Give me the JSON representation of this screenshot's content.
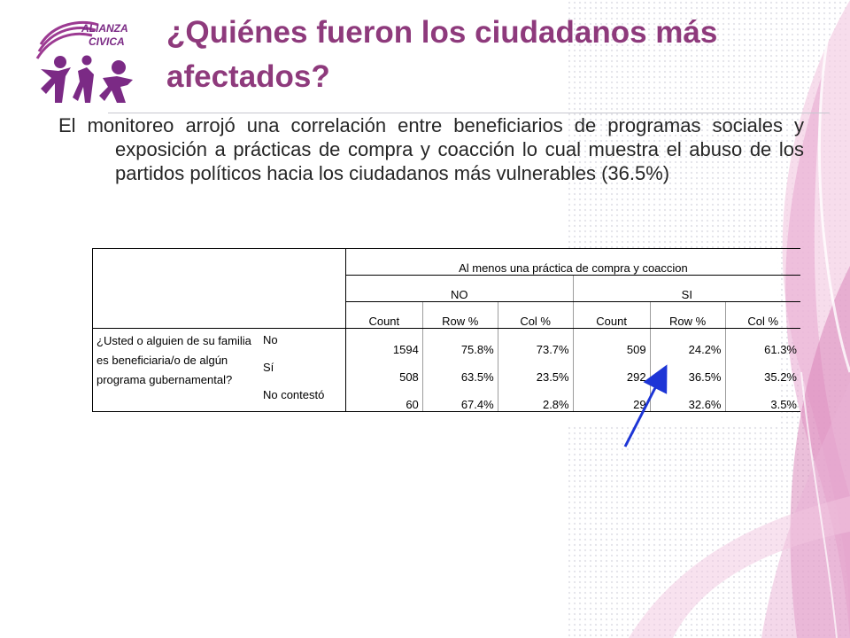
{
  "brand": {
    "logo_line1": "ALIANZA",
    "logo_line2": "CIVICA"
  },
  "title": "¿Quiénes fueron los ciudadanos más afectados?",
  "body": {
    "paragraph": "El monitoreo arrojó una correlación entre beneficiarios de programas sociales y exposición a prácticas de compra y coacción lo cual muestra el abuso de los partidos políticos hacia los ciudadanos más vulnerables (36.5%)"
  },
  "table": {
    "header_top": "Al menos una práctica de compra y coaccion",
    "groups": [
      "NO",
      "SI"
    ],
    "columns": [
      "Count",
      "Row %",
      "Col %",
      "Count",
      "Row %",
      "Col %"
    ],
    "row_question": "¿Usted o alguien de su familia es beneficiaria/o de algún programa gubernamental?",
    "rows": [
      {
        "label": "No",
        "values": [
          "1594",
          "75.8%",
          "73.7%",
          "509",
          "24.2%",
          "61.3%"
        ]
      },
      {
        "label": "Sí",
        "values": [
          "508",
          "63.5%",
          "23.5%",
          "292",
          "36.5%",
          "35.2%"
        ]
      },
      {
        "label": "No contestó",
        "values": [
          "60",
          "67.4%",
          "2.8%",
          "29",
          "32.6%",
          "3.5%"
        ]
      }
    ]
  },
  "colors": {
    "title": "#8e3a7c",
    "brand_purple": "#7b2a85",
    "arrow": "#1d35d6",
    "ribbon": "#d77fb6"
  }
}
